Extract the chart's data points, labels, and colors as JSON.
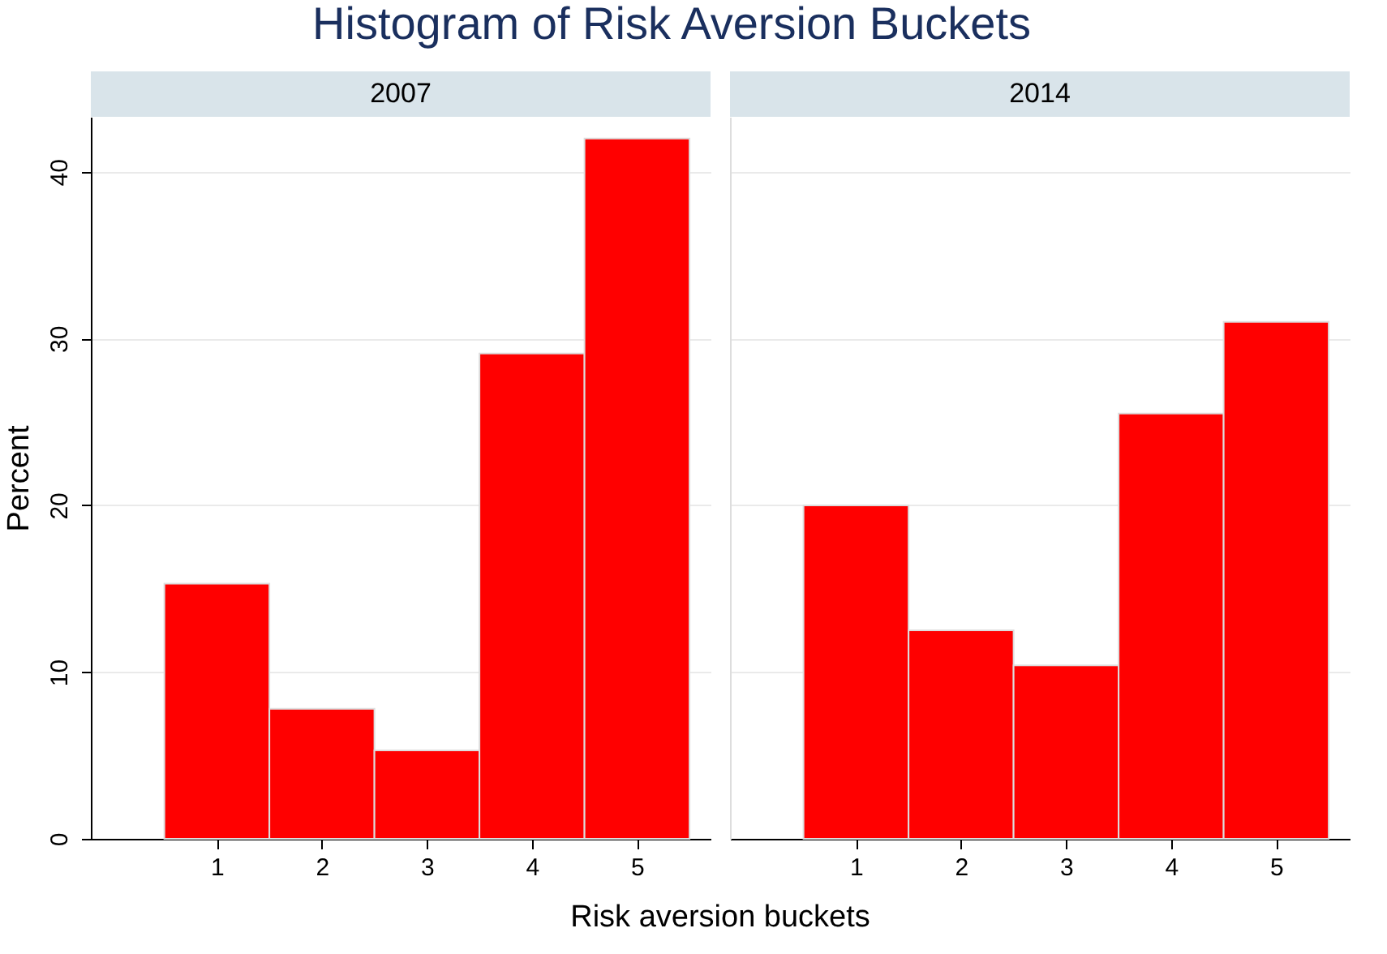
{
  "chart_data": [
    {
      "type": "histogram",
      "title": "Histogram of Risk Aversion Buckets",
      "subtitle": "2007",
      "xlabel": "Risk aversion buckets",
      "ylabel": "Percent",
      "bins": [
        0.5,
        1.5,
        2.5,
        3.5,
        4.5,
        5.5
      ],
      "values": [
        15.3,
        7.8,
        5.3,
        29.1,
        42.0
      ],
      "color": "#ff0000",
      "xlim": [
        -0.2,
        5.7
      ],
      "xticks": [
        1,
        2,
        3,
        4,
        5
      ],
      "ylim": [
        0,
        43.3
      ],
      "yticks": [
        0,
        10,
        20,
        30,
        40
      ],
      "grid": "y"
    },
    {
      "type": "histogram",
      "subtitle": "2014",
      "bins": [
        0.5,
        1.5,
        2.5,
        3.5,
        4.5,
        5.5
      ],
      "values": [
        20.0,
        12.5,
        10.4,
        25.5,
        31.0
      ],
      "color": "#ff0000",
      "xlim": [
        -0.2,
        5.7
      ],
      "xticks": [
        1,
        2,
        3,
        4,
        5
      ],
      "ylim": [
        0,
        43.3
      ],
      "yticks": [
        0,
        10,
        20,
        30,
        40
      ],
      "grid": "y",
      "tick_labels": "x"
    }
  ]
}
